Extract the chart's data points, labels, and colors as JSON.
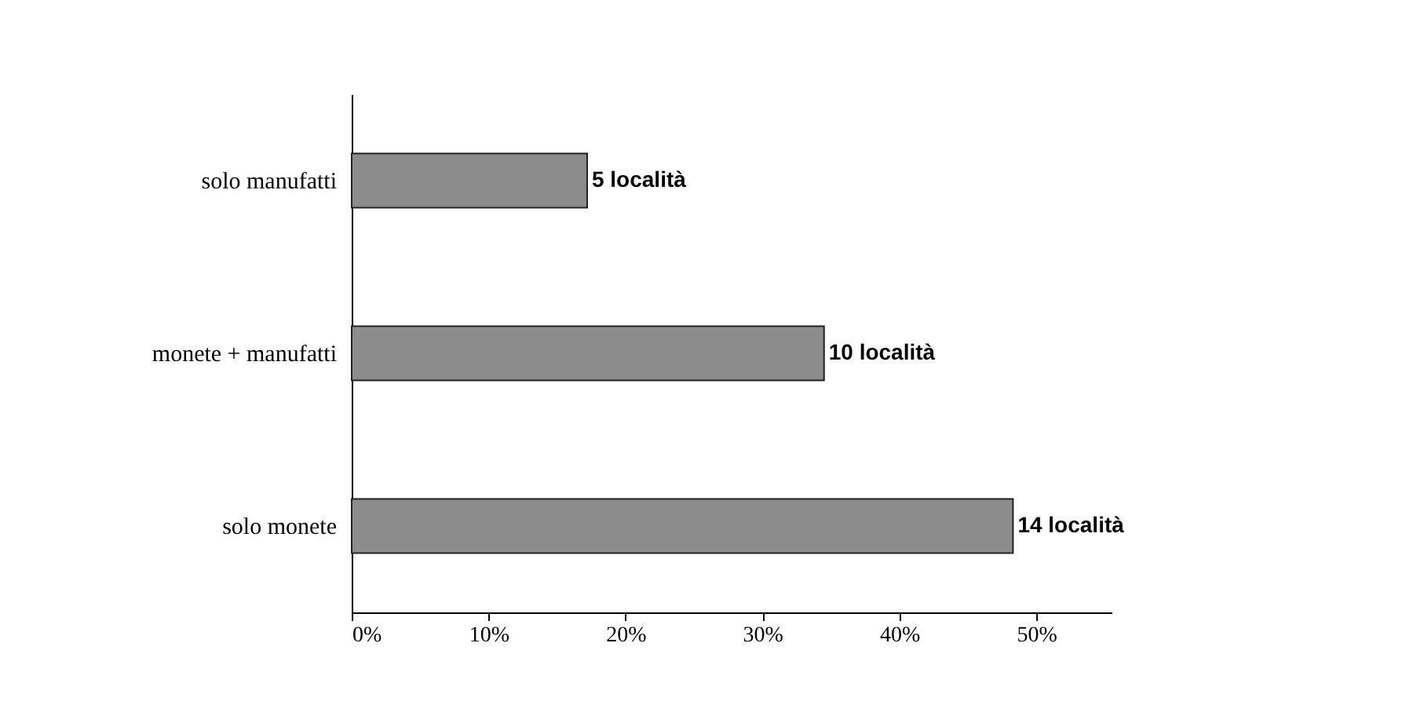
{
  "chart_data": {
    "type": "bar",
    "orientation": "horizontal",
    "categories": [
      "solo manufatti",
      "monete + manufatti",
      "solo monete"
    ],
    "values": [
      17.2,
      34.5,
      48.3
    ],
    "color": "#8c8c8c",
    "annotations": [
      {
        "text": "5 località",
        "x": 17.2,
        "y": "solo manufatti"
      },
      {
        "text": "10 località",
        "x": 34.5,
        "y": "monete + manufatti"
      },
      {
        "text": "14 località",
        "x": 48.3,
        "y": "solo monete"
      }
    ],
    "xlim": [
      0,
      55.5
    ],
    "xticks": [
      {
        "value": 0,
        "label": "0%"
      },
      {
        "value": 10,
        "label": "10%"
      },
      {
        "value": 20,
        "label": "20%"
      },
      {
        "value": 30,
        "label": "30%"
      },
      {
        "value": 40,
        "label": "40%"
      },
      {
        "value": 50,
        "label": "50%"
      }
    ],
    "grid": false
  }
}
